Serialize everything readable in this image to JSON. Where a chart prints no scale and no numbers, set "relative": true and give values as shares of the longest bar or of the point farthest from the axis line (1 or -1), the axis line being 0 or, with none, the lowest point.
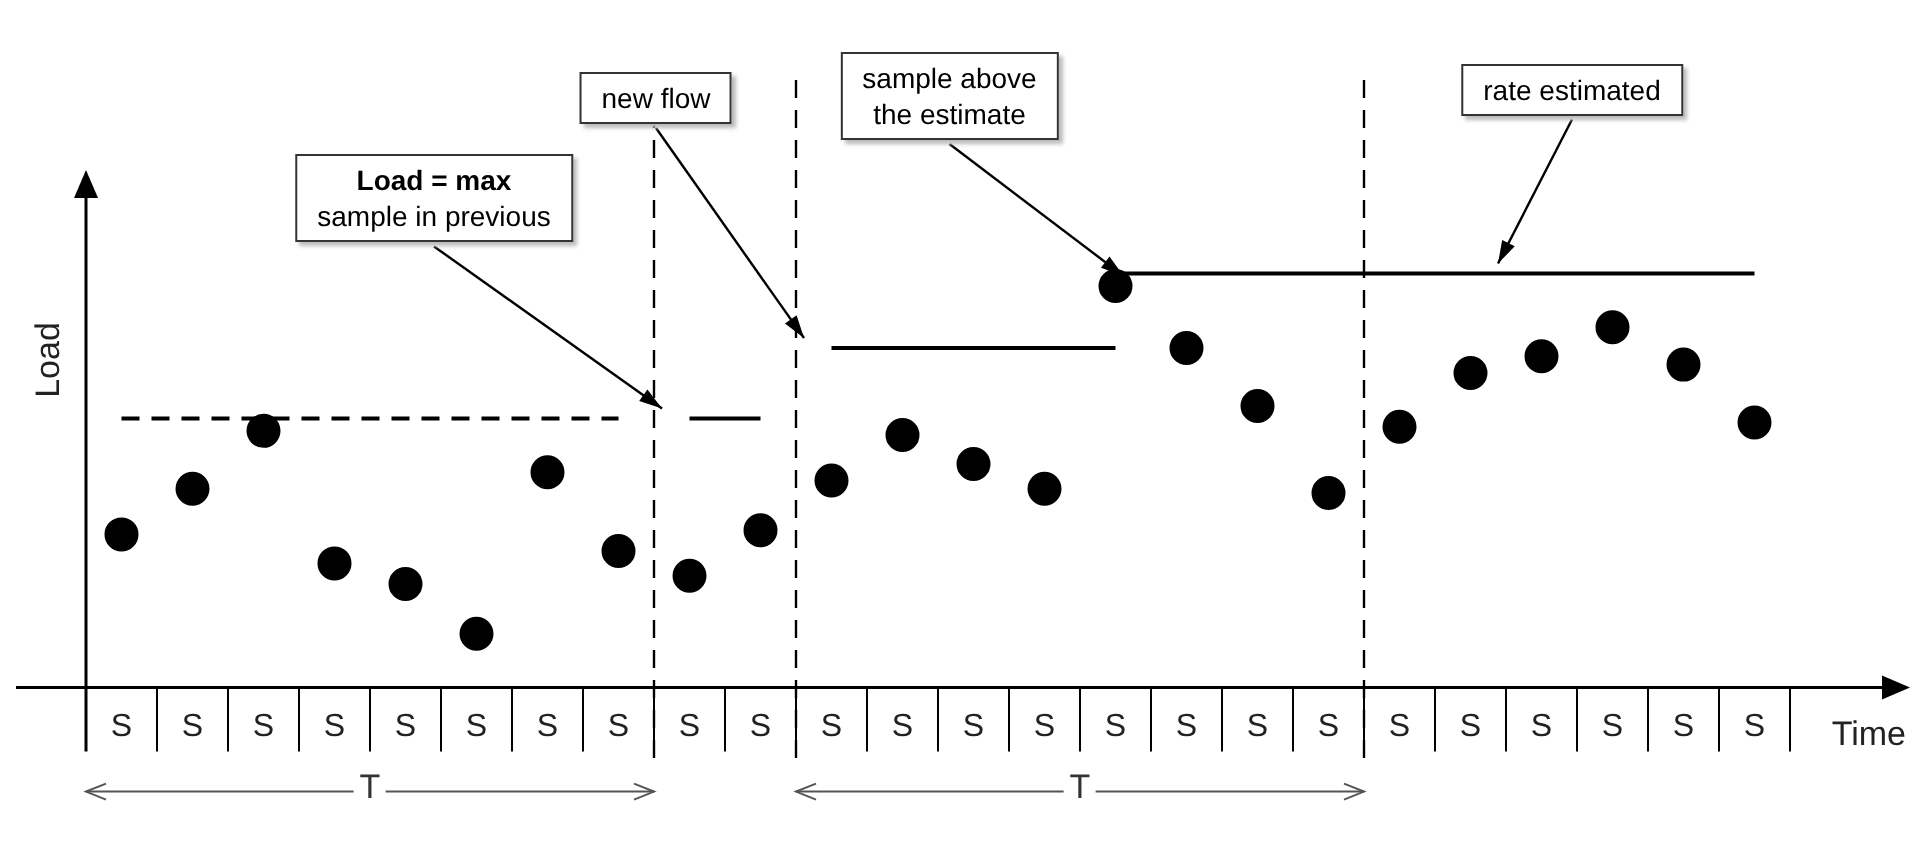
{
  "chart_data": {
    "type": "scatter",
    "relative": true,
    "xlabel": "Time",
    "ylabel": "Load",
    "categories": [
      "S",
      "S",
      "S",
      "S",
      "S",
      "S",
      "S",
      "S",
      "S",
      "S",
      "S",
      "S",
      "S",
      "S",
      "S",
      "S",
      "S",
      "S",
      "S",
      "S",
      "S",
      "S",
      "S",
      "S"
    ],
    "grid": false,
    "legend": false,
    "series": [
      {
        "type": "scatter",
        "color": "#000000",
        "marker": "circle",
        "values": [
          0.37,
          0.48,
          0.62,
          0.3,
          0.25,
          0.13,
          0.52,
          0.33,
          0.27,
          0.38,
          0.5,
          0.61,
          0.54,
          0.48,
          0.97,
          0.82,
          0.68,
          0.47,
          0.63,
          0.76,
          0.8,
          0.87,
          0.78,
          0.64
        ]
      },
      {
        "type": "line",
        "color": "#000000",
        "marker": "none",
        "line_style": "dashed",
        "values": [
          0.65,
          0.65,
          0.65,
          0.65,
          0.65,
          0.65,
          0.65,
          0.65,
          null,
          null,
          null,
          null,
          null,
          null,
          null,
          null,
          null,
          null,
          null,
          null,
          null,
          null,
          null,
          null
        ]
      },
      {
        "type": "line",
        "color": "#000000",
        "marker": "none",
        "values": [
          null,
          null,
          null,
          null,
          null,
          null,
          null,
          null,
          0.65,
          0.65,
          null,
          null,
          null,
          null,
          null,
          null,
          null,
          null,
          null,
          null,
          null,
          null,
          null,
          null
        ]
      },
      {
        "type": "line",
        "color": "#000000",
        "marker": "none",
        "values": [
          null,
          null,
          null,
          null,
          null,
          null,
          null,
          null,
          null,
          null,
          0.82,
          0.82,
          0.82,
          0.82,
          0.82,
          null,
          null,
          null,
          null,
          null,
          null,
          null,
          null,
          null
        ]
      },
      {
        "type": "line",
        "color": "#000000",
        "marker": "none",
        "values": [
          null,
          null,
          null,
          null,
          null,
          null,
          null,
          null,
          null,
          null,
          null,
          null,
          null,
          null,
          1,
          1,
          1,
          1,
          1,
          1,
          1,
          1,
          1,
          1
        ]
      }
    ],
    "annotations": [
      "Load = max\nsample in previous",
      "new flow",
      "sample above\nthe estimate",
      "rate estimated",
      "T",
      "T"
    ]
  }
}
